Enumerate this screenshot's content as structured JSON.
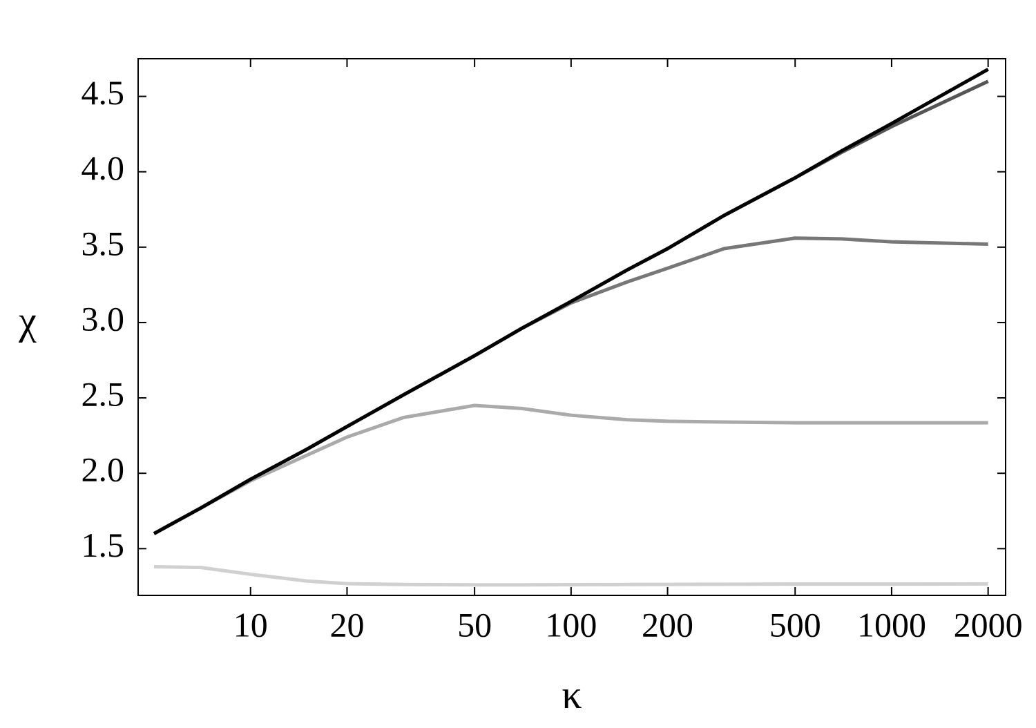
{
  "chart_data": {
    "type": "line",
    "xlabel": "κ",
    "ylabel": "χ",
    "x": [
      5,
      7,
      10,
      15,
      20,
      30,
      50,
      70,
      100,
      150,
      200,
      300,
      500,
      700,
      1000,
      2000
    ],
    "series": [
      {
        "color": "#d0d0d0",
        "values": [
          1.38,
          1.375,
          1.33,
          1.285,
          1.268,
          1.262,
          1.26,
          1.26,
          1.261,
          1.262,
          1.263,
          1.264,
          1.265,
          1.265,
          1.265,
          1.266
        ]
      },
      {
        "color": "#aaaaaa",
        "values": [
          1.6,
          1.77,
          1.95,
          2.12,
          2.24,
          2.37,
          2.45,
          2.43,
          2.385,
          2.355,
          2.345,
          2.34,
          2.335,
          2.335,
          2.335,
          2.335
        ]
      },
      {
        "color": "#777777",
        "values": [
          1.6,
          1.77,
          1.96,
          2.16,
          2.31,
          2.52,
          2.78,
          2.96,
          3.13,
          3.27,
          3.36,
          3.49,
          3.56,
          3.555,
          3.535,
          3.52
        ]
      },
      {
        "color": "#555555",
        "values": [
          1.6,
          1.77,
          1.96,
          2.16,
          2.31,
          2.52,
          2.78,
          2.96,
          3.14,
          3.35,
          3.49,
          3.71,
          3.96,
          4.13,
          4.3,
          4.6
        ]
      },
      {
        "color": "#000000",
        "values": [
          1.6,
          1.77,
          1.96,
          2.16,
          2.31,
          2.52,
          2.78,
          2.96,
          3.14,
          3.35,
          3.49,
          3.71,
          3.96,
          4.14,
          4.32,
          4.68
        ]
      }
    ],
    "xscale": "log",
    "xlim": [
      4.46,
      2268
    ],
    "xticks": [
      10,
      20,
      50,
      100,
      200,
      500,
      1000,
      2000
    ],
    "ylim": [
      1.19,
      4.75
    ],
    "yticks": [
      1.5,
      {
        "value": 2,
        "label": "2.0"
      },
      2.5,
      {
        "value": 3,
        "label": "3.0"
      },
      3.5,
      {
        "value": 4,
        "label": "4.0"
      },
      4.5
    ]
  }
}
